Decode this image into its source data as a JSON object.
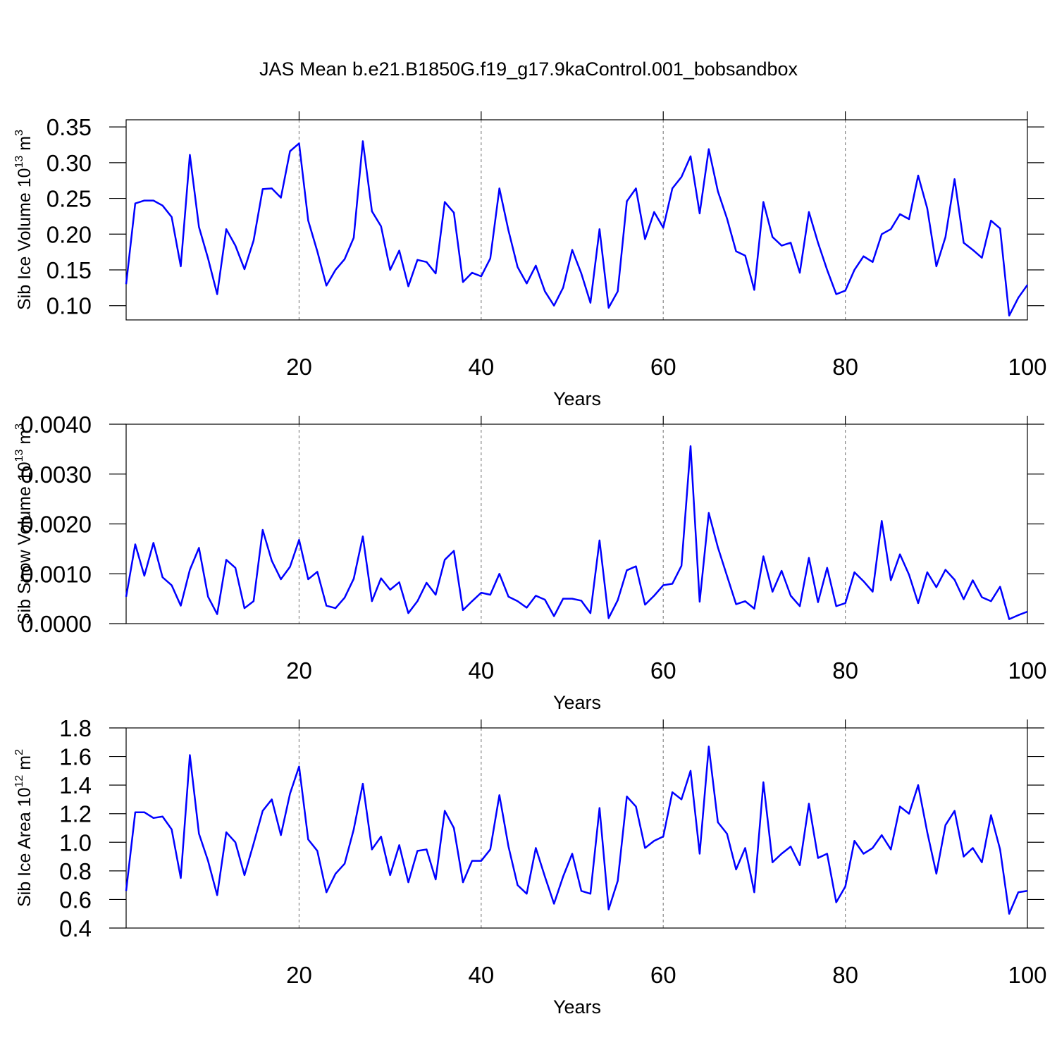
{
  "chart_data": [
    {
      "type": "line",
      "title": "JAS Mean b.e21.B1850G.f19_g17.9kaControl.001_bobsandbox",
      "xlabel": "Years",
      "ylabel": [
        "Sib Ice Volume 10",
        "13",
        " m",
        "3"
      ],
      "x": [
        1,
        2,
        3,
        4,
        5,
        6,
        7,
        8,
        9,
        10,
        11,
        12,
        13,
        14,
        15,
        16,
        17,
        18,
        19,
        20,
        21,
        22,
        23,
        24,
        25,
        26,
        27,
        28,
        29,
        30,
        31,
        32,
        33,
        34,
        35,
        36,
        37,
        38,
        39,
        40,
        41,
        42,
        43,
        44,
        45,
        46,
        47,
        48,
        49,
        50,
        51,
        52,
        53,
        54,
        55,
        56,
        57,
        58,
        59,
        60,
        61,
        62,
        63,
        64,
        65,
        66,
        67,
        68,
        69,
        70,
        71,
        72,
        73,
        74,
        75,
        76,
        77,
        78,
        79,
        80,
        81,
        82,
        83,
        84,
        85,
        86,
        87,
        88,
        89,
        90,
        91,
        92,
        93,
        94,
        95,
        96,
        97,
        98,
        99,
        100
      ],
      "series": [
        {
          "color": "#0000ff",
          "values": [
            0.13,
            0.243,
            0.247,
            0.247,
            0.24,
            0.224,
            0.155,
            0.311,
            0.21,
            0.166,
            0.116,
            0.207,
            0.184,
            0.151,
            0.191,
            0.263,
            0.264,
            0.251,
            0.316,
            0.327,
            0.219,
            0.176,
            0.128,
            0.15,
            0.165,
            0.195,
            0.33,
            0.232,
            0.211,
            0.15,
            0.177,
            0.127,
            0.164,
            0.161,
            0.145,
            0.245,
            0.23,
            0.133,
            0.146,
            0.141,
            0.166,
            0.264,
            0.205,
            0.154,
            0.131,
            0.156,
            0.12,
            0.1,
            0.125,
            0.178,
            0.145,
            0.104,
            0.207,
            0.097,
            0.12,
            0.246,
            0.264,
            0.193,
            0.231,
            0.209,
            0.264,
            0.28,
            0.309,
            0.229,
            0.319,
            0.26,
            0.222,
            0.176,
            0.17,
            0.122,
            0.245,
            0.196,
            0.184,
            0.188,
            0.146,
            0.231,
            0.188,
            0.15,
            0.116,
            0.121,
            0.15,
            0.169,
            0.161,
            0.2,
            0.207,
            0.228,
            0.221,
            0.282,
            0.236,
            0.155,
            0.196,
            0.277,
            0.188,
            0.178,
            0.167,
            0.219,
            0.208,
            0.086,
            0.111,
            0.129
          ]
        }
      ],
      "xlim": [
        1,
        100
      ],
      "xticks": [
        20,
        40,
        60,
        80,
        100
      ],
      "xgrid": true,
      "ylim": [
        0.08,
        0.36
      ],
      "yticks": [
        {
          "value": 0.1,
          "label": "0.10"
        },
        0.15,
        {
          "value": 0.2,
          "label": "0.20"
        },
        0.25,
        {
          "value": 0.3,
          "label": "0.30"
        },
        0.35
      ]
    },
    {
      "type": "line",
      "xlabel": "Years",
      "ylabel": [
        "Sib Snow Volume 10",
        "13",
        " m",
        "3"
      ],
      "x": [
        1,
        2,
        3,
        4,
        5,
        6,
        7,
        8,
        9,
        10,
        11,
        12,
        13,
        14,
        15,
        16,
        17,
        18,
        19,
        20,
        21,
        22,
        23,
        24,
        25,
        26,
        27,
        28,
        29,
        30,
        31,
        32,
        33,
        34,
        35,
        36,
        37,
        38,
        39,
        40,
        41,
        42,
        43,
        44,
        45,
        46,
        47,
        48,
        49,
        50,
        51,
        52,
        53,
        54,
        55,
        56,
        57,
        58,
        59,
        60,
        61,
        62,
        63,
        64,
        65,
        66,
        67,
        68,
        69,
        70,
        71,
        72,
        73,
        74,
        75,
        76,
        77,
        78,
        79,
        80,
        81,
        82,
        83,
        84,
        85,
        86,
        87,
        88,
        89,
        90,
        91,
        92,
        93,
        94,
        95,
        96,
        97,
        98,
        99,
        100
      ],
      "series": [
        {
          "color": "#0000ff",
          "values": [
            0.00054,
            0.00159,
            0.00096,
            0.00162,
            0.00093,
            0.00077,
            0.00036,
            0.00108,
            0.00152,
            0.00054,
            0.00019,
            0.00128,
            0.00112,
            0.00031,
            0.00045,
            0.00188,
            0.00126,
            0.00089,
            0.00114,
            0.00168,
            0.00089,
            0.00104,
            0.00036,
            0.00031,
            0.00052,
            0.0009,
            0.00175,
            0.00045,
            0.00091,
            0.00068,
            0.00083,
            0.00021,
            0.00045,
            0.00082,
            0.00058,
            0.00128,
            0.00146,
            0.00027,
            0.00045,
            0.00062,
            0.00058,
            0.001,
            0.00054,
            0.00045,
            0.00032,
            0.00056,
            0.00048,
            0.00015,
            0.0005,
            0.0005,
            0.00046,
            0.00021,
            0.00167,
            0.00011,
            0.00047,
            0.00107,
            0.00115,
            0.00038,
            0.00056,
            0.00077,
            0.0008,
            0.00116,
            0.00356,
            0.00044,
            0.00222,
            0.00153,
            0.00096,
            0.00039,
            0.00045,
            0.0003,
            0.00135,
            0.00064,
            0.00106,
            0.00056,
            0.00035,
            0.00132,
            0.00043,
            0.00112,
            0.00035,
            0.00041,
            0.00103,
            0.00085,
            0.00064,
            0.00206,
            0.00087,
            0.00139,
            0.00098,
            0.00041,
            0.00103,
            0.00073,
            0.00108,
            0.00088,
            0.00049,
            0.00087,
            0.00053,
            0.00045,
            0.00074,
            9e-05,
            0.00017,
            0.00024
          ]
        }
      ],
      "xlim": [
        1,
        100
      ],
      "xticks": [
        20,
        40,
        60,
        80,
        100
      ],
      "xgrid": true,
      "ylim": [
        0,
        0.004
      ],
      "yticks": [
        {
          "value": 0,
          "label": "0.0000"
        },
        {
          "value": 0.001,
          "label": "0.0010"
        },
        {
          "value": 0.002,
          "label": "0.0020"
        },
        {
          "value": 0.003,
          "label": "0.0030"
        },
        {
          "value": 0.004,
          "label": "0.0040"
        }
      ]
    },
    {
      "type": "line",
      "xlabel": "Years",
      "ylabel": [
        "Sib Ice Area 10",
        "12",
        " m",
        "2"
      ],
      "x": [
        1,
        2,
        3,
        4,
        5,
        6,
        7,
        8,
        9,
        10,
        11,
        12,
        13,
        14,
        15,
        16,
        17,
        18,
        19,
        20,
        21,
        22,
        23,
        24,
        25,
        26,
        27,
        28,
        29,
        30,
        31,
        32,
        33,
        34,
        35,
        36,
        37,
        38,
        39,
        40,
        41,
        42,
        43,
        44,
        45,
        46,
        47,
        48,
        49,
        50,
        51,
        52,
        53,
        54,
        55,
        56,
        57,
        58,
        59,
        60,
        61,
        62,
        63,
        64,
        65,
        66,
        67,
        68,
        69,
        70,
        71,
        72,
        73,
        74,
        75,
        76,
        77,
        78,
        79,
        80,
        81,
        82,
        83,
        84,
        85,
        86,
        87,
        88,
        89,
        90,
        91,
        92,
        93,
        94,
        95,
        96,
        97,
        98,
        99,
        100
      ],
      "series": [
        {
          "color": "#0000ff",
          "values": [
            0.66,
            1.21,
            1.21,
            1.17,
            1.18,
            1.09,
            0.75,
            1.61,
            1.06,
            0.87,
            0.63,
            1.07,
            1.0,
            0.77,
            0.99,
            1.22,
            1.3,
            1.05,
            1.34,
            1.53,
            1.02,
            0.94,
            0.65,
            0.78,
            0.85,
            1.09,
            1.41,
            0.95,
            1.04,
            0.77,
            0.98,
            0.72,
            0.94,
            0.95,
            0.74,
            1.22,
            1.1,
            0.72,
            0.87,
            0.87,
            0.95,
            1.33,
            0.97,
            0.7,
            0.64,
            0.96,
            0.76,
            0.57,
            0.76,
            0.92,
            0.66,
            0.64,
            1.24,
            0.53,
            0.73,
            1.32,
            1.25,
            0.96,
            1.01,
            1.04,
            1.35,
            1.3,
            1.5,
            0.92,
            1.67,
            1.14,
            1.06,
            0.81,
            0.96,
            0.65,
            1.42,
            0.86,
            0.92,
            0.97,
            0.84,
            1.27,
            0.89,
            0.92,
            0.58,
            0.69,
            1.01,
            0.92,
            0.96,
            1.05,
            0.95,
            1.25,
            1.2,
            1.4,
            1.07,
            0.78,
            1.12,
            1.22,
            0.9,
            0.96,
            0.86,
            1.19,
            0.95,
            0.5,
            0.65,
            0.66
          ]
        }
      ],
      "xlim": [
        1,
        100
      ],
      "xticks": [
        20,
        40,
        60,
        80,
        100
      ],
      "xgrid": true,
      "ylim": [
        0.4,
        1.8
      ],
      "yticks": [
        0.4,
        0.6,
        0.8,
        {
          "value": 1.0,
          "label": "1.0"
        },
        1.2,
        1.4,
        1.6,
        1.8
      ]
    }
  ]
}
